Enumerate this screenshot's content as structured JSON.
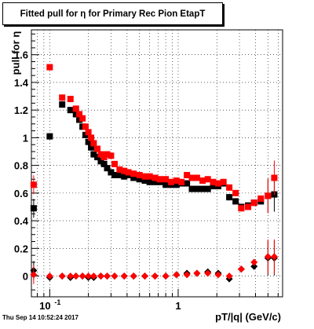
{
  "chart_data": {
    "type": "scatter",
    "title": "Fitted pull for  η for Primary Rec Pion EtapT",
    "xlabel": "pT/|q| (GeV/c)",
    "ylabel": "pull for  η",
    "x_scale": "log",
    "xlim": [
      0.072,
      6.5
    ],
    "ylim": [
      -0.15,
      1.78
    ],
    "x_ticks": [
      {
        "value": 0.1,
        "label": "10^{-1}"
      },
      {
        "value": 1,
        "label": "1"
      }
    ],
    "y_ticks": [
      0,
      0.2,
      0.4,
      0.6,
      0.8,
      1,
      1.2,
      1.4,
      1.6
    ],
    "grid": true,
    "footer": "Thu Sep 14 10:52:24 2017",
    "series": [
      {
        "marker": "square",
        "color": "#000000",
        "x": [
          0.075,
          0.1,
          0.125,
          0.145,
          0.16,
          0.17,
          0.18,
          0.19,
          0.2,
          0.21,
          0.22,
          0.235,
          0.25,
          0.265,
          0.28,
          0.3,
          0.32,
          0.35,
          0.38,
          0.41,
          0.45,
          0.5,
          0.55,
          0.6,
          0.66,
          0.72,
          0.8,
          0.88,
          0.97,
          1.06,
          1.17,
          1.28,
          1.4,
          1.55,
          1.7,
          1.87,
          2.05,
          2.25,
          2.5,
          2.8,
          3.1,
          3.5,
          3.9,
          4.4,
          5.0,
          5.6
        ],
        "y": [
          0.49,
          1.01,
          1.24,
          1.2,
          1.17,
          1.13,
          1.08,
          1.02,
          0.97,
          0.93,
          0.88,
          0.86,
          0.83,
          0.81,
          0.78,
          0.75,
          0.73,
          0.73,
          0.72,
          0.73,
          0.71,
          0.7,
          0.69,
          0.68,
          0.68,
          0.68,
          0.66,
          0.66,
          0.66,
          0.67,
          0.67,
          0.63,
          0.63,
          0.63,
          0.63,
          0.65,
          0.65,
          0.67,
          0.57,
          0.54,
          0.5,
          0.51,
          0.53,
          0.54,
          0.58,
          0.59
        ]
      },
      {
        "marker": "square",
        "color": "#ff0000",
        "x": [
          0.075,
          0.1,
          0.125,
          0.145,
          0.16,
          0.17,
          0.18,
          0.19,
          0.2,
          0.21,
          0.22,
          0.235,
          0.25,
          0.265,
          0.28,
          0.3,
          0.32,
          0.35,
          0.38,
          0.41,
          0.45,
          0.5,
          0.55,
          0.6,
          0.66,
          0.72,
          0.8,
          0.88,
          0.97,
          1.06,
          1.17,
          1.28,
          1.4,
          1.55,
          1.7,
          1.87,
          2.05,
          2.25,
          2.5,
          2.8,
          3.1,
          3.5,
          3.9,
          4.4,
          5.0,
          5.6
        ],
        "y": [
          0.66,
          1.51,
          1.29,
          1.28,
          1.21,
          1.17,
          1.14,
          1.08,
          1.04,
          1.0,
          0.96,
          0.92,
          0.88,
          0.86,
          0.88,
          0.87,
          0.81,
          0.77,
          0.76,
          0.75,
          0.74,
          0.73,
          0.72,
          0.72,
          0.71,
          0.7,
          0.7,
          0.68,
          0.69,
          0.68,
          0.73,
          0.71,
          0.71,
          0.69,
          0.7,
          0.68,
          0.67,
          0.68,
          0.64,
          0.6,
          0.49,
          0.5,
          0.53,
          0.56,
          0.58,
          0.71
        ]
      },
      {
        "marker": "diamond",
        "color": "#000000",
        "x": [
          0.075,
          0.1,
          0.125,
          0.145,
          0.16,
          0.18,
          0.2,
          0.22,
          0.25,
          0.28,
          0.32,
          0.38,
          0.45,
          0.55,
          0.66,
          0.8,
          0.97,
          1.17,
          1.4,
          1.7,
          2.05,
          2.5,
          3.1,
          3.9,
          5.0,
          5.6
        ],
        "y": [
          0.04,
          -0.01,
          0.0,
          -0.01,
          0.0,
          0.0,
          -0.01,
          -0.01,
          0.0,
          0.0,
          0.0,
          0.0,
          0.0,
          0.0,
          0.0,
          0.0,
          0.01,
          0.02,
          0.02,
          0.03,
          0.02,
          -0.02,
          0.05,
          0.07,
          0.13,
          0.13
        ]
      },
      {
        "marker": "diamond",
        "color": "#ff0000",
        "x": [
          0.075,
          0.1,
          0.125,
          0.145,
          0.16,
          0.18,
          0.2,
          0.22,
          0.25,
          0.28,
          0.32,
          0.38,
          0.45,
          0.55,
          0.66,
          0.8,
          0.97,
          1.17,
          1.4,
          1.7,
          2.05,
          2.5,
          3.1,
          3.9,
          5.0,
          5.6
        ],
        "y": [
          0.01,
          0.0,
          0.0,
          0.0,
          0.0,
          0.0,
          0.0,
          0.0,
          0.0,
          0.0,
          0.0,
          0.0,
          0.0,
          0.0,
          0.0,
          0.0,
          0.01,
          0.01,
          0.02,
          0.02,
          0.01,
          0.0,
          0.05,
          0.1,
          0.14,
          0.14
        ]
      }
    ]
  }
}
